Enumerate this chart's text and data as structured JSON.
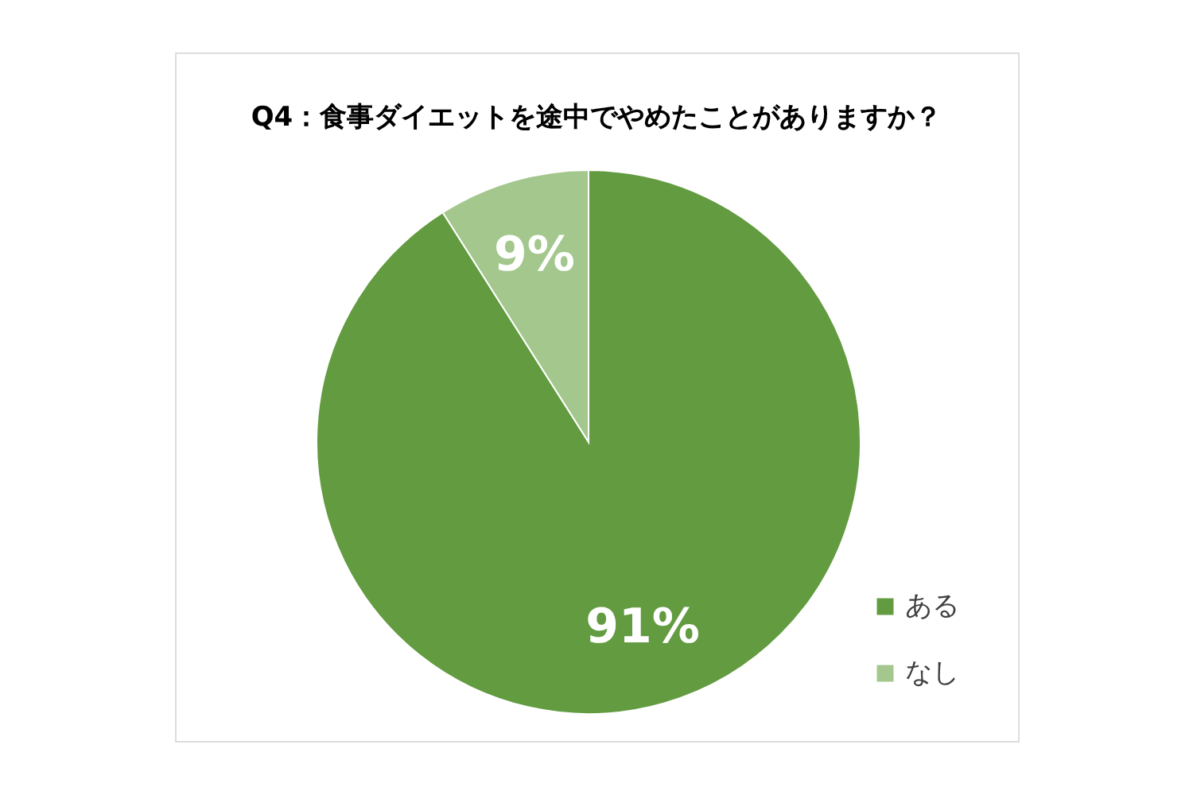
{
  "chart_data": {
    "type": "pie",
    "title": "Q4：食事ダイエットを途中でやめたことがありますか？",
    "categories": [
      "ある",
      "なし"
    ],
    "values": [
      91,
      9
    ],
    "colors": [
      "#629b40",
      "#a3c78d"
    ],
    "value_labels": [
      "91%",
      "9%"
    ],
    "legend": "bottom right"
  }
}
